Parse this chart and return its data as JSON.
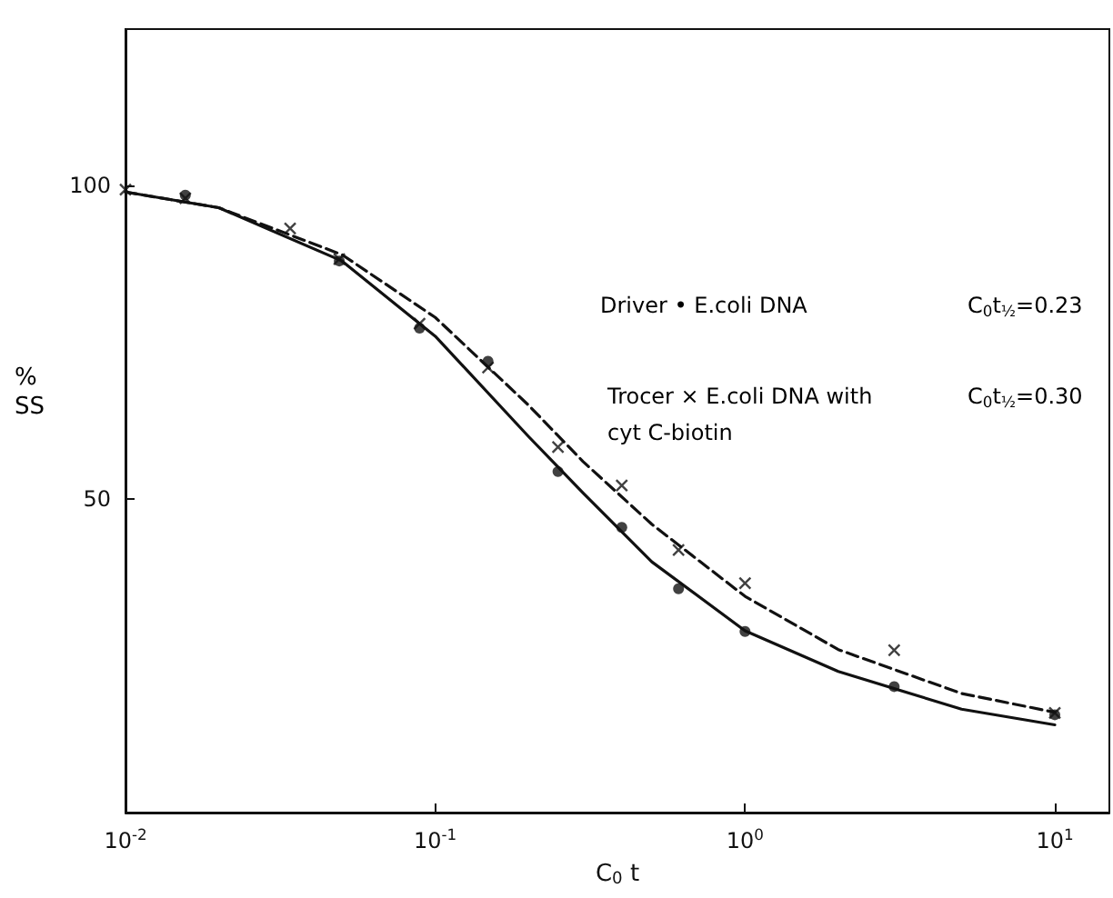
{
  "chart_data": {
    "type": "scatter",
    "xlabel": "C$_{0}$ t",
    "ylabel": "% SS",
    "log": "x",
    "grid": false,
    "xlim": [
      0.01,
      15
    ],
    "xticks": [
      {
        "value": 0.01,
        "label": "10$^{-2}$"
      },
      {
        "value": 0.1,
        "label": "10$^{-1}$"
      },
      {
        "value": 1,
        "label": "10$^{0}$"
      },
      {
        "value": 10,
        "label": "10$^{1}$"
      }
    ],
    "ylim": [
      0,
      125
    ],
    "yticks": [
      50,
      100
    ],
    "annotations": [
      "Driver • E.coli DNA",
      "C$_{0}$t$_{½}$=0.23",
      "Trocer × E.coli DNA with\ncyt C-biotin",
      "C$_{0}$t$_{½}$=0.30"
    ],
    "series": [
      {
        "marker": "circle",
        "color": "#111111",
        "x": [
          0.0156,
          0.049,
          0.089,
          0.148,
          0.249,
          0.4,
          0.61,
          1.0,
          3.03,
          10
        ],
        "values": [
          98.5,
          88,
          77.3,
          72,
          54.4,
          45.5,
          35.7,
          28.9,
          20.1,
          15.6
        ]
      },
      {
        "marker": "cross",
        "color": "#111111",
        "x": [
          0.01,
          0.0156,
          0.034,
          0.049,
          0.089,
          0.148,
          0.249,
          0.4,
          0.61,
          1.0,
          3.03,
          10
        ],
        "values": [
          99.4,
          98,
          93.2,
          88.3,
          78,
          71,
          58.3,
          52.2,
          41.9,
          36.6,
          25.9,
          15.9
        ]
      },
      {
        "type": "line",
        "marker": "none",
        "line_style": "solid",
        "color": "#111111",
        "x": [
          0.01,
          0.02,
          0.05,
          0.1,
          0.2,
          0.3,
          0.5,
          1,
          2,
          5,
          10
        ],
        "values": [
          99,
          96.5,
          88,
          76,
          60,
          51,
          40,
          29,
          22.5,
          16.5,
          14
        ]
      },
      {
        "type": "line",
        "marker": "none",
        "line_style": "dashed",
        "color": "#111111",
        "x": [
          0.01,
          0.02,
          0.05,
          0.1,
          0.2,
          0.3,
          0.5,
          1,
          2,
          5,
          10
        ],
        "values": [
          99,
          96.5,
          89,
          79,
          65,
          56,
          46,
          34.5,
          26,
          19,
          16
        ]
      }
    ]
  }
}
